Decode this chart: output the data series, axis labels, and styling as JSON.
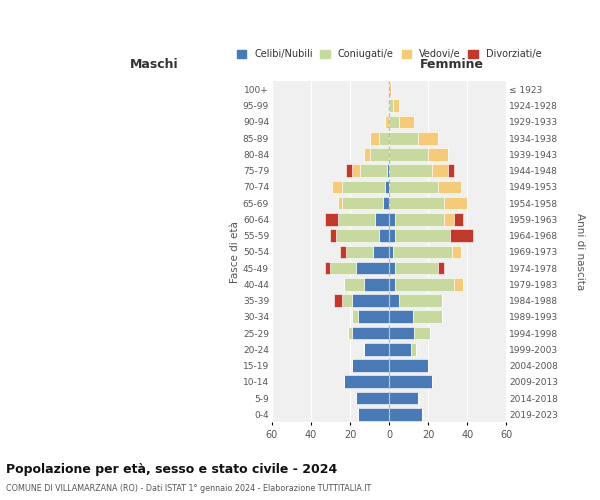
{
  "age_groups_bottom_to_top": [
    "0-4",
    "5-9",
    "10-14",
    "15-19",
    "20-24",
    "25-29",
    "30-34",
    "35-39",
    "40-44",
    "45-49",
    "50-54",
    "55-59",
    "60-64",
    "65-69",
    "70-74",
    "75-79",
    "80-84",
    "85-89",
    "90-94",
    "95-99",
    "100+"
  ],
  "birth_years_bottom_to_top": [
    "2019-2023",
    "2014-2018",
    "2009-2013",
    "2004-2008",
    "1999-2003",
    "1994-1998",
    "1989-1993",
    "1984-1988",
    "1979-1983",
    "1974-1978",
    "1969-1973",
    "1964-1968",
    "1959-1963",
    "1954-1958",
    "1949-1953",
    "1944-1948",
    "1939-1943",
    "1934-1938",
    "1929-1933",
    "1924-1928",
    "≤ 1923"
  ],
  "colors": {
    "celibi": "#4a7ab5",
    "coniugati": "#c8d9a0",
    "vedovi": "#f5cb7a",
    "divorziati": "#c0392b"
  },
  "maschi_celibi": [
    16,
    17,
    23,
    19,
    13,
    19,
    16,
    19,
    13,
    17,
    8,
    5,
    7,
    3,
    2,
    1,
    0,
    0,
    0,
    0,
    0
  ],
  "maschi_coniugati": [
    0,
    0,
    0,
    0,
    0,
    2,
    3,
    5,
    10,
    13,
    14,
    22,
    19,
    21,
    22,
    14,
    10,
    5,
    0,
    0,
    0
  ],
  "maschi_vedovi": [
    0,
    0,
    0,
    0,
    0,
    0,
    0,
    0,
    0,
    0,
    0,
    0,
    0,
    2,
    5,
    4,
    3,
    5,
    2,
    0,
    0
  ],
  "maschi_divorziati": [
    0,
    0,
    0,
    0,
    0,
    0,
    0,
    4,
    0,
    3,
    3,
    3,
    7,
    0,
    0,
    3,
    0,
    0,
    0,
    0,
    0
  ],
  "femmine_nubili": [
    17,
    15,
    22,
    20,
    11,
    13,
    12,
    5,
    3,
    3,
    2,
    3,
    3,
    0,
    0,
    0,
    0,
    0,
    0,
    0,
    0
  ],
  "femmine_coniugate": [
    0,
    0,
    0,
    0,
    3,
    8,
    15,
    22,
    30,
    22,
    30,
    28,
    25,
    28,
    25,
    22,
    20,
    15,
    5,
    2,
    0
  ],
  "femmine_vedove": [
    0,
    0,
    0,
    0,
    0,
    0,
    0,
    0,
    5,
    0,
    5,
    0,
    5,
    12,
    12,
    8,
    10,
    10,
    8,
    3,
    1
  ],
  "femmine_divorziate": [
    0,
    0,
    0,
    0,
    0,
    0,
    0,
    0,
    0,
    3,
    0,
    12,
    5,
    0,
    0,
    3,
    0,
    0,
    0,
    0,
    0
  ],
  "xlim": 60,
  "title": "Popolazione per età, sesso e stato civile - 2024",
  "subtitle": "COMUNE DI VILLAMARZANA (RO) - Dati ISTAT 1° gennaio 2024 - Elaborazione TUTTITALIA.IT",
  "ylabel_left": "Fasce di età",
  "ylabel_right": "Anni di nascita",
  "xlabel_left": "Maschi",
  "xlabel_right": "Femmine",
  "bg_color": "#F0F0F0",
  "legend_labels": [
    "Celibi/Nubili",
    "Coniugati/e",
    "Vedovi/e",
    "Divorziati/e"
  ]
}
